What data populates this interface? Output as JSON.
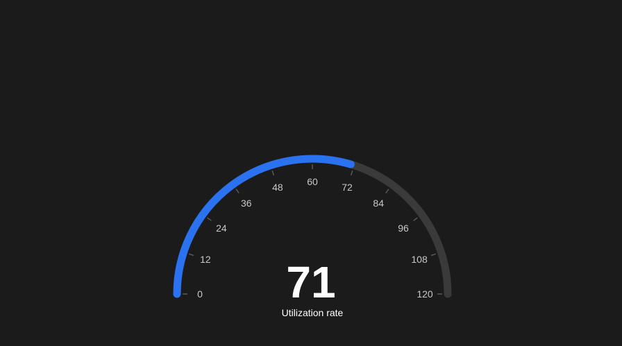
{
  "colors": {
    "background": "#1b1b1b",
    "track": "#3a3a3a",
    "progress": "#2a72f0",
    "tick": "#5a5a5a",
    "label": "#c8c8c8",
    "value": "#ffffff"
  },
  "chart_data": {
    "type": "gauge",
    "min": 0,
    "max": 120,
    "value": 71,
    "ticks": [
      0,
      12,
      24,
      36,
      48,
      60,
      72,
      84,
      96,
      108,
      120
    ],
    "tick_labels": [
      "0",
      "12",
      "24",
      "36",
      "48",
      "60",
      "72",
      "84",
      "96",
      "108",
      "120"
    ],
    "value_label": "71",
    "caption": "Utilization rate"
  }
}
